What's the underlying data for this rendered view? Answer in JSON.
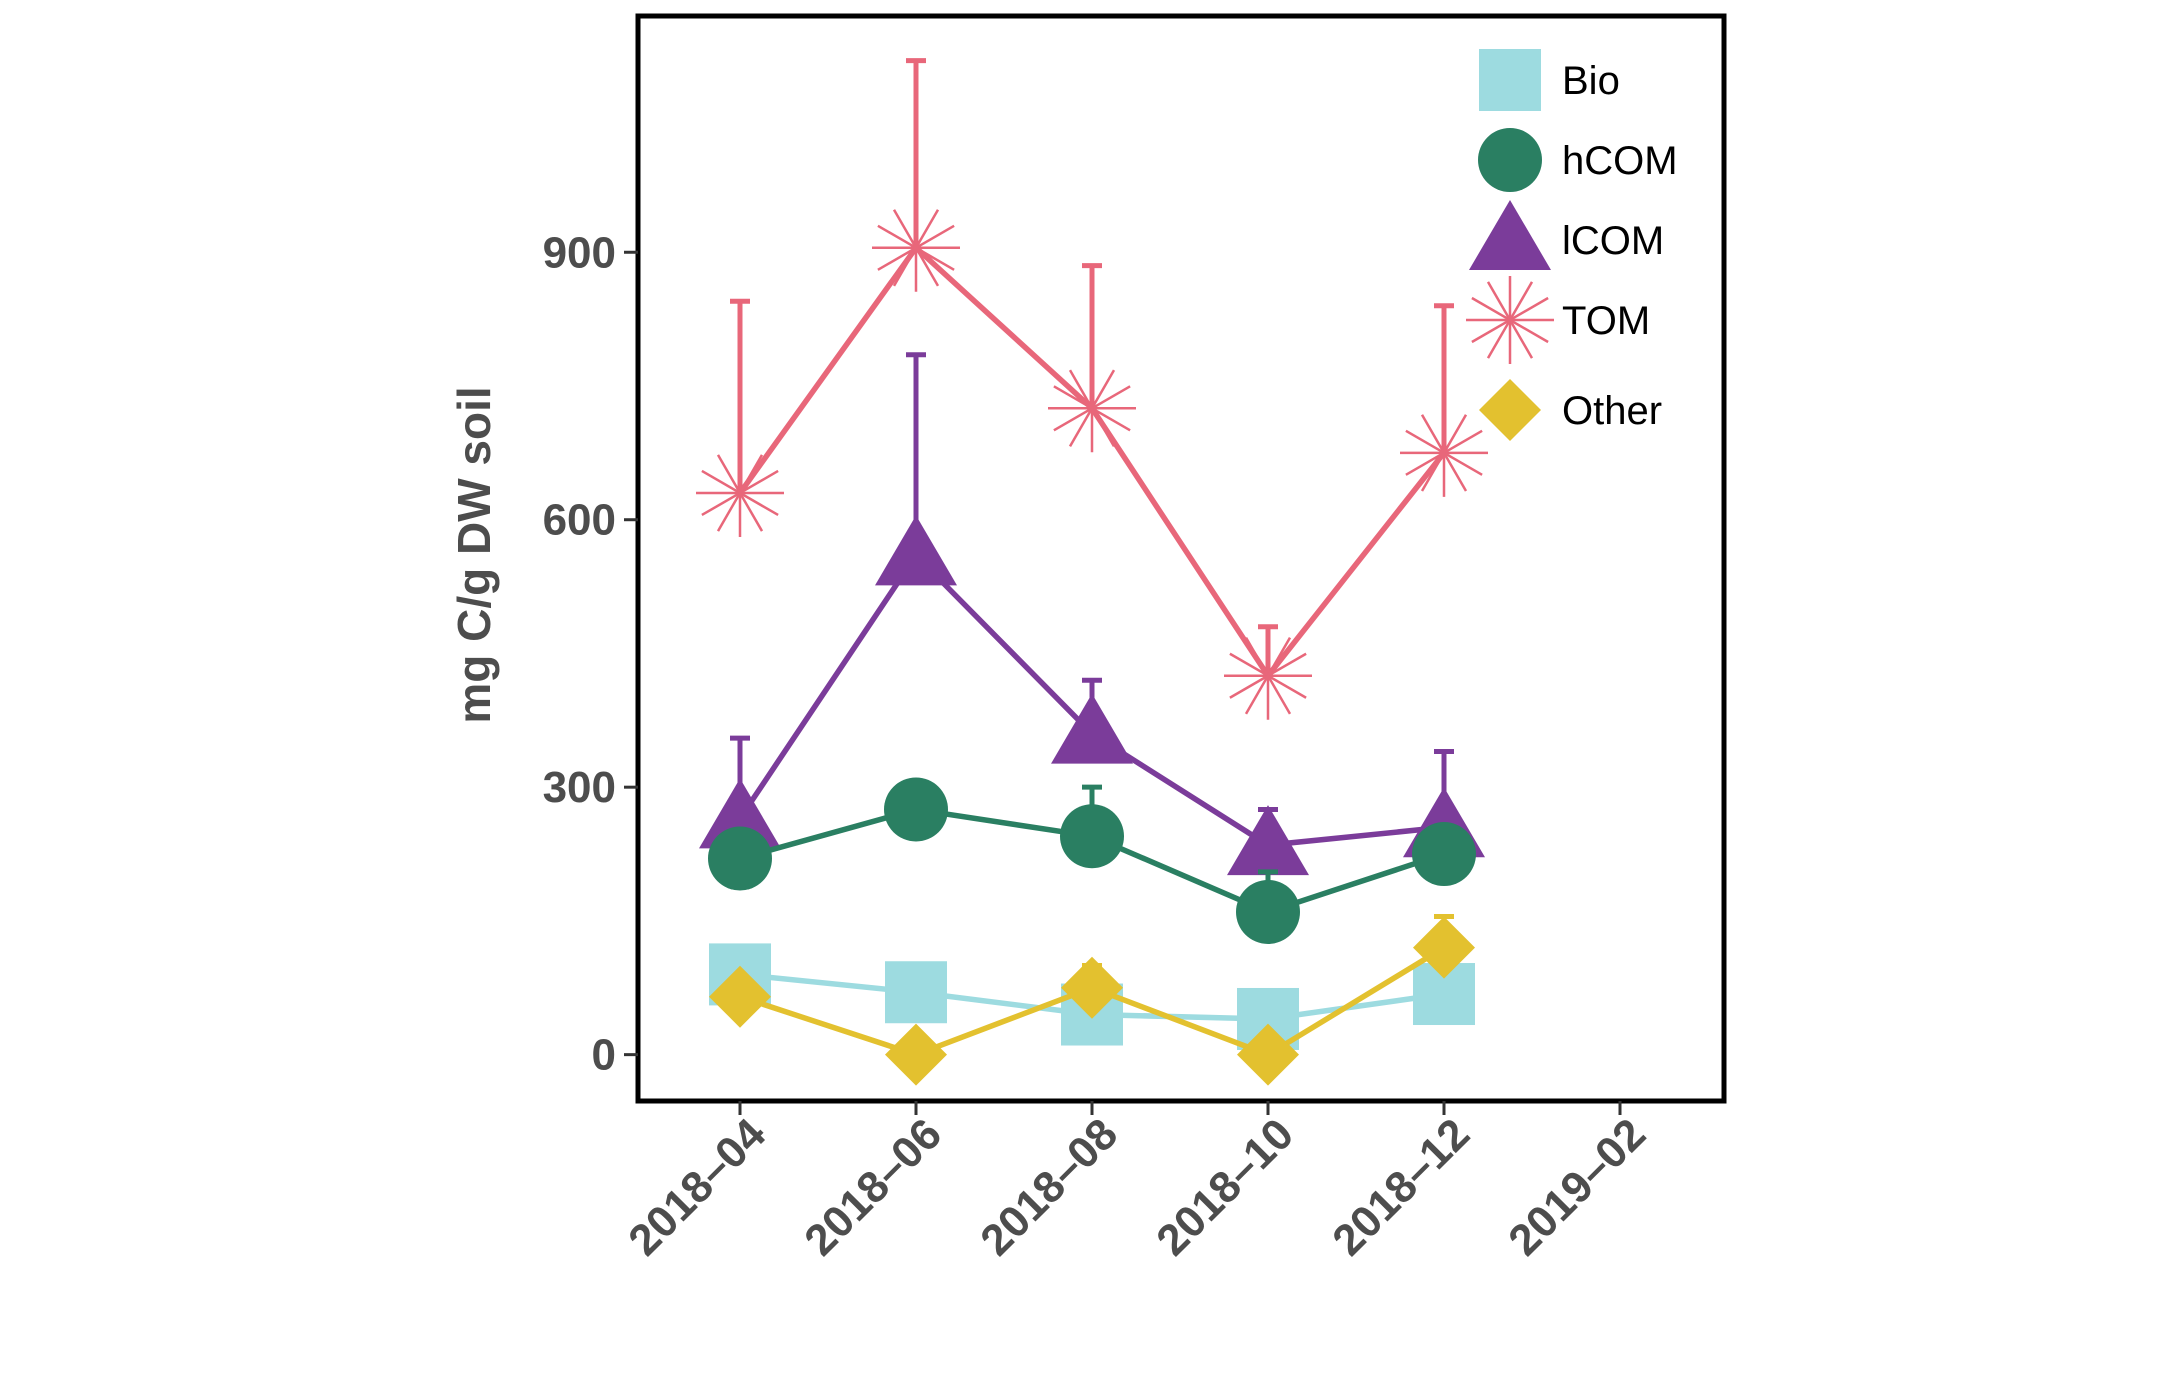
{
  "chart_data": {
    "type": "line",
    "title": "",
    "xlabel": "",
    "ylabel": "mg C/g DW soil",
    "x_ticks": [
      "2018–04",
      "2018–06",
      "2018–08",
      "2018–10",
      "2018–12",
      "2019–02"
    ],
    "y_ticks": [
      0,
      300,
      600,
      900
    ],
    "ylim": [
      -52,
      1165
    ],
    "x": [
      "2018-04",
      "2018-06",
      "2018-08",
      "2018-10",
      "2018-12"
    ],
    "grid": false,
    "legend_position": "top-right",
    "series": [
      {
        "name": "Bio",
        "color": "#9ddbe0",
        "marker": "square",
        "values": [
          90,
          70,
          45,
          40,
          68
        ],
        "err_upper": [
          null,
          null,
          null,
          null,
          null
        ]
      },
      {
        "name": "hCOM",
        "color": "#2a7f62",
        "marker": "circle",
        "values": [
          220,
          275,
          245,
          160,
          225
        ],
        "err_upper": [
          null,
          null,
          300,
          205,
          null
        ]
      },
      {
        "name": "lCOM",
        "color": "#7b3c9a",
        "marker": "triangle",
        "values": [
          265,
          560,
          360,
          235,
          255
        ],
        "err_upper": [
          355,
          785,
          420,
          275,
          340
        ]
      },
      {
        "name": "TOM",
        "color": "#e8677a",
        "marker": "asterisk",
        "values": [
          630,
          905,
          725,
          425,
          675
        ],
        "err_upper": [
          845,
          1115,
          885,
          480,
          840
        ]
      },
      {
        "name": "Other",
        "color": "#e3c12f",
        "marker": "diamond",
        "values": [
          65,
          0,
          75,
          0,
          120
        ],
        "err_upper": [
          null,
          null,
          100,
          null,
          155
        ]
      }
    ]
  }
}
